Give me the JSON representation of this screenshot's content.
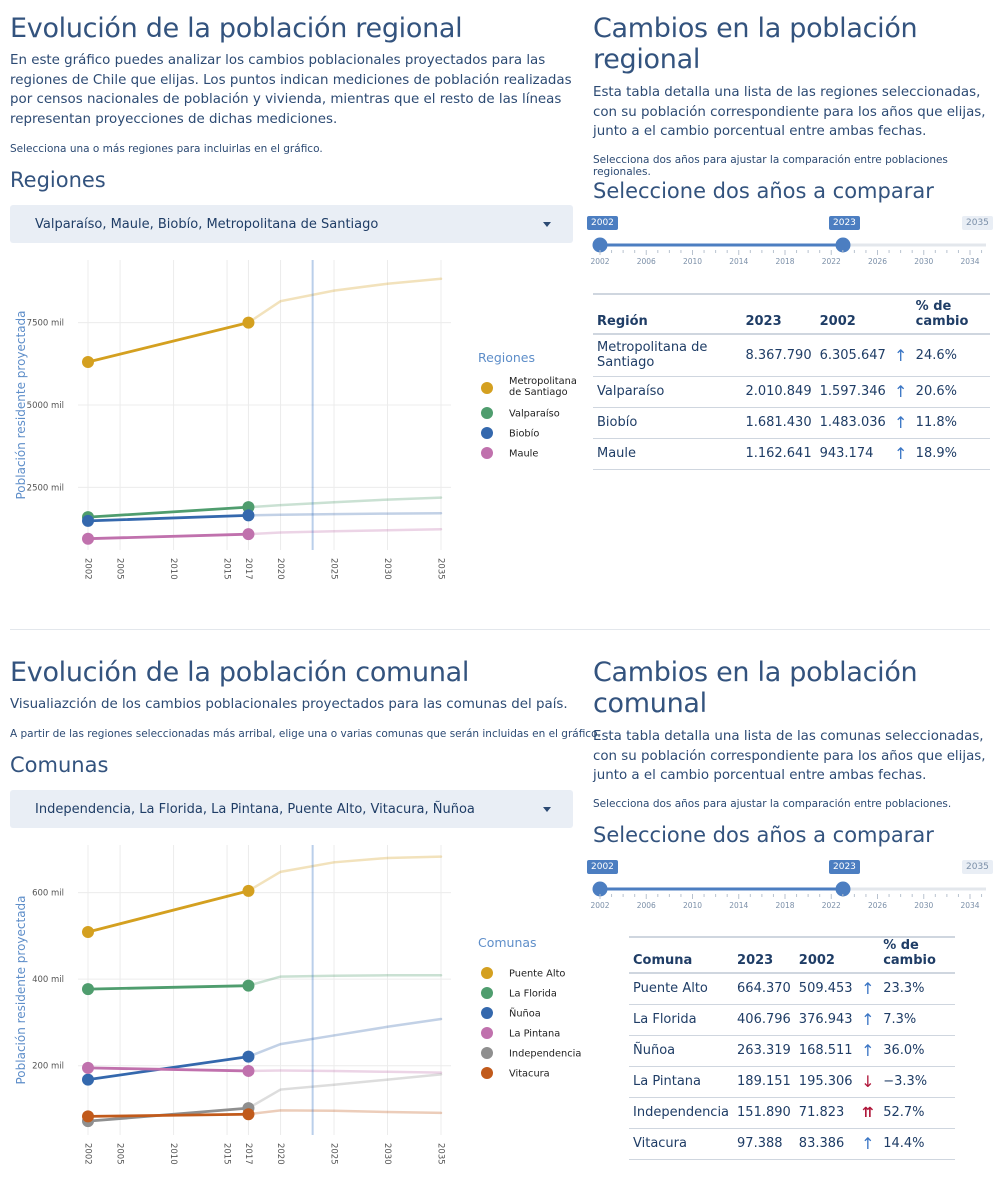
{
  "regional": {
    "title": "Evolución de la población regional",
    "description": "En este gráfico puedes analizar los cambios poblacionales proyectados para las regiones de Chile que elijas. Los puntos indican mediciones de población realizadas por censos nacionales de población y vivienda, mientras que el resto de las líneas representan proyecciones de dichas mediciones.",
    "instruction": "Selecciona una o más regiones para incluirlas en el gráfico.",
    "selector_label": "Regiones",
    "selector_value": "Valparaíso, Maule, Biobío, Metropolitana de Santiago"
  },
  "regional_table": {
    "title": "Cambios en la población regional",
    "description": "Esta tabla detalla una lista de las regiones seleccionadas, con su población correspondiente para los años que elijas, junto a el cambio porcentual entre ambas fechas.",
    "instruction": "Selecciona dos años para ajustar la comparación entre poblaciones regionales.",
    "slider_label": "Seleccione dos años a comparar",
    "slider": {
      "from": "2002",
      "to": "2023",
      "max": "2035",
      "ticks": [
        "2002",
        "2006",
        "2010",
        "2014",
        "2018",
        "2022",
        "2026",
        "2030",
        "2034"
      ]
    },
    "headers": [
      "Región",
      "2023",
      "2002",
      "% de cambio"
    ],
    "rows": [
      {
        "name": "Metropolitana de Santiago",
        "a": "8.367.790",
        "b": "6.305.647",
        "dir": "↑",
        "pct": "24.6%"
      },
      {
        "name": "Valparaíso",
        "a": "2.010.849",
        "b": "1.597.346",
        "dir": "↑",
        "pct": "20.6%"
      },
      {
        "name": "Biobío",
        "a": "1.681.430",
        "b": "1.483.036",
        "dir": "↑",
        "pct": "11.8%"
      },
      {
        "name": "Maule",
        "a": "1.162.641",
        "b": "943.174",
        "dir": "↑",
        "pct": "18.9%"
      }
    ]
  },
  "comunal": {
    "title": "Evolución de la población comunal",
    "description": "Visualiazción de los cambios poblacionales proyectados para las comunas del país.",
    "instruction": "A partir de las regiones seleccionadas más arribal, elige una o varias comunas que serán incluidas en el gráfico.",
    "selector_label": "Comunas",
    "selector_value": "Independencia, La Florida, La Pintana, Puente Alto, Vitacura, Ñuñoa"
  },
  "comunal_table": {
    "title": "Cambios en la población comunal",
    "description": "Esta tabla detalla una lista de las comunas seleccionadas, con su población correspondiente para los años que elijas, junto a el cambio porcentual entre ambas fechas.",
    "instruction": "Selecciona dos años para ajustar la comparación entre poblaciones.",
    "slider_label": "Seleccione dos años a comparar",
    "slider": {
      "from": "2002",
      "to": "2023",
      "max": "2035",
      "ticks": [
        "2002",
        "2006",
        "2010",
        "2014",
        "2018",
        "2022",
        "2026",
        "2030",
        "2034"
      ]
    },
    "headers": [
      "Comuna",
      "2023",
      "2002",
      "% de cambio"
    ],
    "rows": [
      {
        "name": "Puente Alto",
        "a": "664.370",
        "b": "509.453",
        "dir": "↑",
        "pct": "23.3%"
      },
      {
        "name": "La Florida",
        "a": "406.796",
        "b": "376.943",
        "dir": "↑",
        "pct": "7.3%"
      },
      {
        "name": "Ñuñoa",
        "a": "263.319",
        "b": "168.511",
        "dir": "↑",
        "pct": "36.0%"
      },
      {
        "name": "La Pintana",
        "a": "189.151",
        "b": "195.306",
        "dir": "↓",
        "pct": "−3.3%"
      },
      {
        "name": "Independencia",
        "a": "151.890",
        "b": "71.823",
        "dir": "⇈",
        "pct": "52.7%"
      },
      {
        "name": "Vitacura",
        "a": "97.388",
        "b": "83.386",
        "dir": "↑",
        "pct": "14.4%"
      }
    ]
  },
  "chart_data": [
    {
      "type": "line",
      "ylabel": "Población residente proyectada",
      "legend_title": "Regiones",
      "legend_position": "right",
      "xlim": [
        2002,
        2035
      ],
      "x_ticks": [
        2002,
        2005,
        2010,
        2015,
        2017,
        2020,
        2025,
        2030,
        2035
      ],
      "y_ticks": [
        2500,
        5000,
        7500
      ],
      "y_tick_labels": [
        "2500 mil",
        "5000 mil",
        "7500 mil"
      ],
      "ylim": [
        600,
        9400
      ],
      "vline": 2023,
      "series": [
        {
          "name": "Metropolitana de Santiago",
          "color": "#d4a020",
          "points": [
            [
              2002,
              6306
            ],
            [
              2017,
              7500
            ]
          ],
          "proj": [
            [
              2017,
              7500
            ],
            [
              2020,
              8150
            ],
            [
              2025,
              8470
            ],
            [
              2030,
              8680
            ],
            [
              2035,
              8830
            ]
          ]
        },
        {
          "name": "Valparaíso",
          "color": "#4f9d6e",
          "points": [
            [
              2002,
              1597
            ],
            [
              2017,
              1900
            ]
          ],
          "proj": [
            [
              2017,
              1900
            ],
            [
              2020,
              1960
            ],
            [
              2025,
              2050
            ],
            [
              2030,
              2130
            ],
            [
              2035,
              2190
            ]
          ]
        },
        {
          "name": "Biobío",
          "color": "#3468ad",
          "points": [
            [
              2002,
              1483
            ],
            [
              2017,
              1650
            ]
          ],
          "proj": [
            [
              2017,
              1650
            ],
            [
              2020,
              1670
            ],
            [
              2025,
              1690
            ],
            [
              2030,
              1705
            ],
            [
              2035,
              1715
            ]
          ]
        },
        {
          "name": "Maule",
          "color": "#c071ad",
          "points": [
            [
              2002,
              943
            ],
            [
              2017,
              1080
            ]
          ],
          "proj": [
            [
              2017,
              1080
            ],
            [
              2020,
              1130
            ],
            [
              2025,
              1170
            ],
            [
              2030,
              1200
            ],
            [
              2035,
              1230
            ]
          ]
        }
      ]
    },
    {
      "type": "line",
      "ylabel": "Población residente proyectada",
      "legend_title": "Comunas",
      "legend_position": "right",
      "xlim": [
        2002,
        2035
      ],
      "x_ticks": [
        2002,
        2005,
        2010,
        2015,
        2017,
        2020,
        2025,
        2030,
        2035
      ],
      "y_ticks": [
        200,
        400,
        600
      ],
      "y_tick_labels": [
        "200 mil",
        "400 mil",
        "600 mil"
      ],
      "ylim": [
        40,
        710
      ],
      "vline": 2023,
      "series": [
        {
          "name": "Puente Alto",
          "color": "#d4a020",
          "points": [
            [
              2002,
              509
            ],
            [
              2017,
              604
            ]
          ],
          "proj": [
            [
              2017,
              604
            ],
            [
              2020,
              648
            ],
            [
              2025,
              670
            ],
            [
              2030,
              680
            ],
            [
              2035,
              683
            ]
          ]
        },
        {
          "name": "La Florida",
          "color": "#4f9d6e",
          "points": [
            [
              2002,
              377
            ],
            [
              2017,
              385
            ]
          ],
          "proj": [
            [
              2017,
              385
            ],
            [
              2020,
              406
            ],
            [
              2025,
              408
            ],
            [
              2030,
              409
            ],
            [
              2035,
              409
            ]
          ]
        },
        {
          "name": "Ñuñoa",
          "color": "#3468ad",
          "points": [
            [
              2002,
              168
            ],
            [
              2017,
              221
            ]
          ],
          "proj": [
            [
              2017,
              221
            ],
            [
              2020,
              250
            ],
            [
              2025,
              270
            ],
            [
              2030,
              290
            ],
            [
              2035,
              308
            ]
          ]
        },
        {
          "name": "La Pintana",
          "color": "#c071ad",
          "points": [
            [
              2002,
              195
            ],
            [
              2017,
              188
            ]
          ],
          "proj": [
            [
              2017,
              188
            ],
            [
              2020,
              189
            ],
            [
              2025,
              188
            ],
            [
              2030,
              186
            ],
            [
              2035,
              184
            ]
          ]
        },
        {
          "name": "Independencia",
          "color": "#8f8f8f",
          "points": [
            [
              2002,
              72
            ],
            [
              2017,
              102
            ]
          ],
          "proj": [
            [
              2017,
              102
            ],
            [
              2020,
              145
            ],
            [
              2025,
              156
            ],
            [
              2030,
              168
            ],
            [
              2035,
              180
            ]
          ]
        },
        {
          "name": "Vitacura",
          "color": "#c15a1b",
          "points": [
            [
              2002,
              83
            ],
            [
              2017,
              88
            ]
          ],
          "proj": [
            [
              2017,
              88
            ],
            [
              2020,
              97
            ],
            [
              2025,
              96
            ],
            [
              2030,
              93
            ],
            [
              2035,
              91
            ]
          ]
        }
      ]
    }
  ]
}
